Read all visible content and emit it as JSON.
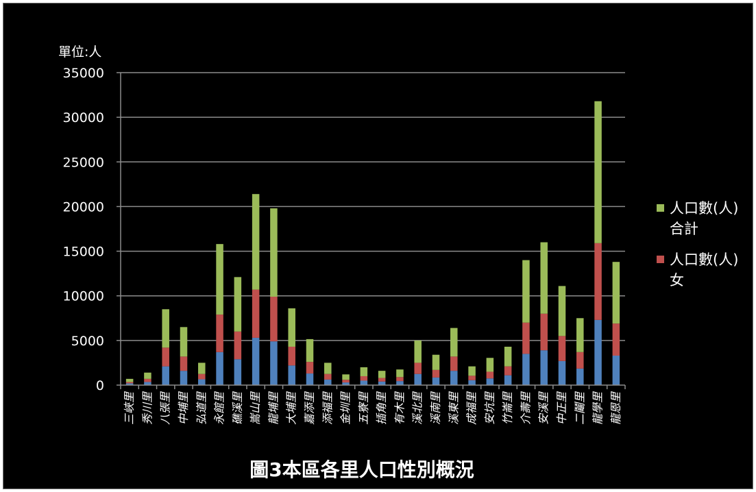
{
  "chart_data": {
    "type": "bar",
    "stacked": true,
    "title": "圖3本區各里人口性別概況",
    "unit_label": "單位:人",
    "ylim": [
      0,
      35000
    ],
    "y_ticks": [
      "0",
      "5000",
      "10000",
      "15000",
      "20000",
      "25000",
      "30000",
      "35000"
    ],
    "grid": true,
    "legend_position": "right",
    "categories": [
      "三峽里",
      "秀川里",
      "八張里",
      "中埔里",
      "弘道里",
      "永館里",
      "礁溪里",
      "嵩山里",
      "龍埔里",
      "大埔里",
      "嘉添里",
      "添福里",
      "金圳里",
      "五寮里",
      "插角里",
      "有木里",
      "溪北里",
      "溪南里",
      "溪東里",
      "成福里",
      "安坑里",
      "竹崙里",
      "介壽里",
      "安溪里",
      "中正里",
      "二鬮里",
      "龍學里",
      "龍恩里"
    ],
    "series": [
      {
        "name": "",
        "color": "#4f81bd",
        "values": [
          200,
          350,
          2100,
          1600,
          650,
          3700,
          2900,
          5300,
          4900,
          2200,
          1300,
          620,
          300,
          500,
          400,
          450,
          1250,
          850,
          1600,
          550,
          750,
          1100,
          3500,
          3900,
          2700,
          1850,
          7300,
          3300
        ]
      },
      {
        "name": "人口數(人) 女",
        "color": "#c0504d",
        "values": [
          150,
          350,
          2100,
          1600,
          600,
          4200,
          3100,
          5400,
          5000,
          2100,
          1300,
          630,
          300,
          500,
          400,
          450,
          1250,
          850,
          1600,
          500,
          750,
          1000,
          3500,
          4100,
          2800,
          1850,
          8600,
          3600
        ]
      },
      {
        "name": "人口數(人) 合計",
        "color": "#9bbb59",
        "values": [
          350,
          700,
          4300,
          3300,
          1250,
          7900,
          6100,
          10700,
          9900,
          4300,
          2550,
          1250,
          600,
          1000,
          800,
          850,
          2500,
          1700,
          3200,
          1050,
          1550,
          2200,
          7000,
          8000,
          5600,
          3800,
          15900,
          6900
        ]
      }
    ],
    "legend": [
      {
        "line1": "人口數(人)",
        "line2": "合計",
        "color": "#9bbb59"
      },
      {
        "line1": "人口數(人)",
        "line2": "女",
        "color": "#c0504d"
      }
    ]
  }
}
